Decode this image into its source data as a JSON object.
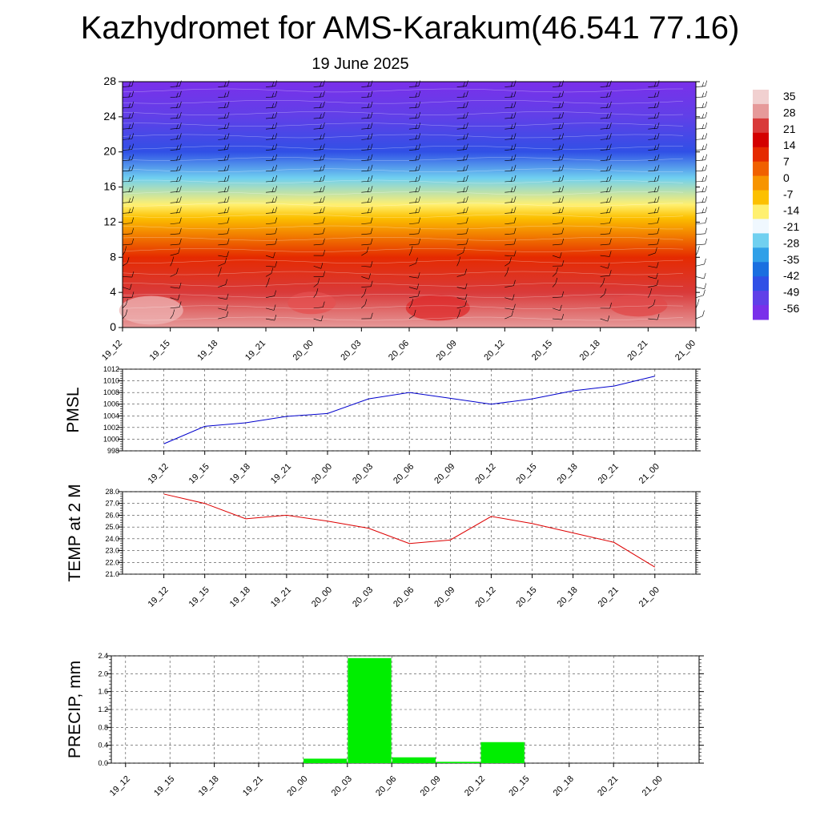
{
  "title": "Kazhydromet for AMS-Karakum(46.541 77.16)",
  "subtitle": "19 June 2025",
  "times": [
    "19_12",
    "19_15",
    "19_18",
    "19_21",
    "20_00",
    "20_03",
    "20_06",
    "20_09",
    "20_12",
    "20_15",
    "20_18",
    "20_21",
    "21_00"
  ],
  "chart_data": [
    {
      "type": "heatmap",
      "name": "temperature-height-section",
      "x_categories": [
        "19_12",
        "19_15",
        "19_18",
        "19_21",
        "20_00",
        "20_03",
        "20_06",
        "20_09",
        "20_12",
        "20_15",
        "20_18",
        "20_21",
        "21_00"
      ],
      "ylim": [
        0,
        28
      ],
      "yticks": [
        "0",
        "4",
        "8",
        "12",
        "16",
        "20",
        "24",
        "28"
      ],
      "colorbar_labels": [
        "35",
        "28",
        "21",
        "14",
        "7",
        "0",
        "-7",
        "-14",
        "-21",
        "-28",
        "-35",
        "-42",
        "-49",
        "-56"
      ],
      "colorbar_colors": [
        "#f1d0d0",
        "#e69a9a",
        "#d93a3a",
        "#d40000",
        "#e52a00",
        "#f06000",
        "#f79400",
        "#fcc000",
        "#fff070",
        "#f0f8ff",
        "#70d0f0",
        "#30a0e8",
        "#1a6fe0",
        "#3050e6",
        "#6040e8",
        "#7a30ea"
      ],
      "temperature_profile": [
        {
          "height": 0,
          "value": 30
        },
        {
          "height": 4,
          "value": 22
        },
        {
          "height": 8,
          "value": 10
        },
        {
          "height": 12.5,
          "value": -10
        },
        {
          "height": 14,
          "value": -16
        },
        {
          "height": 17,
          "value": -28
        },
        {
          "height": 20,
          "value": -45
        },
        {
          "height": 24,
          "value": -52
        },
        {
          "height": 28,
          "value": -58
        }
      ]
    },
    {
      "type": "line",
      "name": "pmsl",
      "ylabel": "PMSL",
      "categories": [
        "19_12",
        "19_15",
        "19_18",
        "19_21",
        "20_00",
        "20_03",
        "20_06",
        "20_09",
        "20_12",
        "20_15",
        "20_18",
        "20_21",
        "21_00"
      ],
      "values": [
        999.2,
        1002.2,
        1002.8,
        1003.9,
        1004.4,
        1006.9,
        1008.0,
        1007.0,
        1006.0,
        1006.9,
        1008.3,
        1009.1,
        1010.8
      ],
      "ylim": [
        998,
        1012
      ],
      "yticks": [
        "998",
        "1000",
        "1002",
        "1004",
        "1006",
        "1008",
        "1010",
        "1012"
      ],
      "color": "#0000cc"
    },
    {
      "type": "line",
      "name": "temp-2m",
      "ylabel": "TEMP at 2 M",
      "categories": [
        "19_12",
        "19_15",
        "19_18",
        "19_21",
        "20_00",
        "20_03",
        "20_06",
        "20_09",
        "20_12",
        "20_15",
        "20_18",
        "20_21",
        "21_00"
      ],
      "values": [
        27.8,
        27.0,
        25.7,
        26.0,
        25.5,
        24.9,
        23.6,
        23.9,
        25.9,
        25.3,
        24.5,
        23.7,
        21.6
      ],
      "ylim": [
        21.0,
        28.0
      ],
      "yticks": [
        "21.0",
        "22.0",
        "23.0",
        "24.0",
        "25.0",
        "26.0",
        "27.0",
        "28.0"
      ],
      "color": "#dd0000"
    },
    {
      "type": "bar",
      "name": "precip",
      "ylabel": "PRECIP, mm",
      "categories": [
        "19_12",
        "19_15",
        "19_18",
        "19_21",
        "20_00",
        "20_03",
        "20_06",
        "20_09",
        "20_12",
        "20_15",
        "20_18",
        "20_21",
        "21_00"
      ],
      "values": [
        0,
        0,
        0,
        0,
        0.1,
        2.35,
        0.13,
        0.03,
        0.47,
        0,
        0,
        0,
        0
      ],
      "ylim": [
        0,
        2.4
      ],
      "yticks": [
        "0.0",
        "0.4",
        "0.8",
        "1.2",
        "1.6",
        "2.0",
        "2.4"
      ],
      "color": "#00ee00"
    }
  ]
}
